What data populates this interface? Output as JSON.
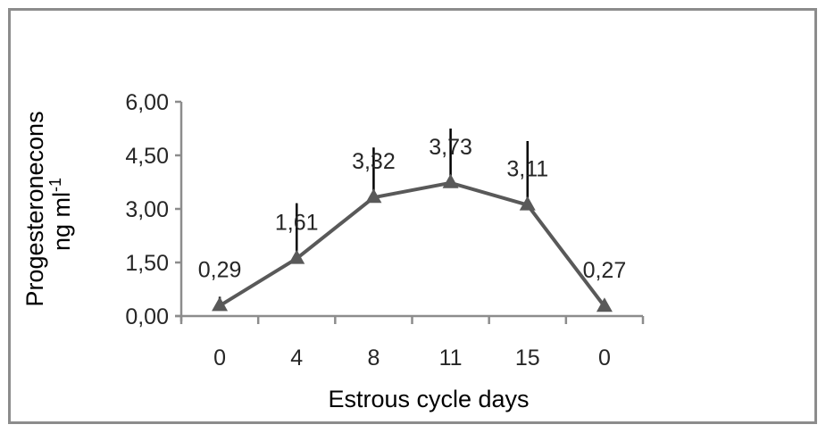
{
  "chart_data": {
    "type": "line",
    "title": "",
    "xlabel": "Estrous cycle days",
    "ylabel": "Progesteronecons ng ml-1",
    "ylabel_line1": "Progesteronecons",
    "ylabel_line2": "ng ml",
    "ylabel_superscript": "-1",
    "categories": [
      "0",
      "4",
      "8",
      "11",
      "15",
      "0"
    ],
    "values": [
      0.29,
      1.61,
      3.32,
      3.73,
      3.11,
      0.27
    ],
    "data_labels": [
      "0,29",
      "1,61",
      "3,32",
      "3,73",
      "3,11",
      "0,27"
    ],
    "error_bars_upper": [
      0.25,
      1.55,
      1.4,
      1.52,
      1.79,
      0.2
    ],
    "ylim": [
      0,
      6
    ],
    "yticks": [
      0,
      1.5,
      3,
      4.5,
      6
    ],
    "ytick_labels": [
      "0,00",
      "1,50",
      "3,00",
      "4,50",
      "6,00"
    ],
    "marker": "triangle",
    "line_color": "#595959",
    "marker_color": "#595959",
    "error_bar_color": "#000000",
    "axis_color": "#8c8c8c",
    "grid": false,
    "legend": "none"
  }
}
